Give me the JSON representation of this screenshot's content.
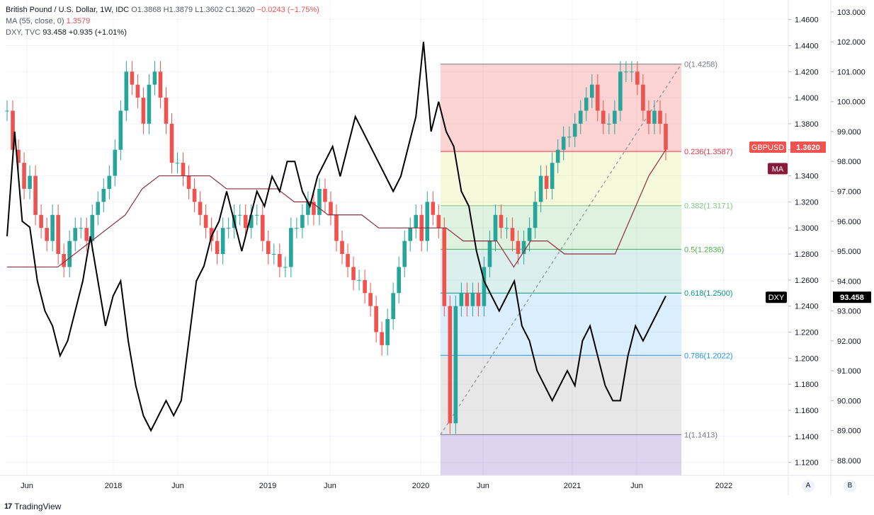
{
  "legend": {
    "symbol": "British Pound / U.S. Dollar, 1W, IDC",
    "open": "O1.3868",
    "high": "H1.3879",
    "low": "L1.3602",
    "close": "C1.3620",
    "change": "−0.0243 (−1.75%)",
    "ma_label": "MA (55, close, 0)",
    "ma_value": "1.3579",
    "dxy_label": "DXY, TVC",
    "dxy_value": "93.458",
    "dxy_change": "+0.935 (+1.01%)"
  },
  "footer": {
    "brand": "TradingView",
    "logo": "17"
  },
  "scale_buttons": {
    "a": "A",
    "b": "B"
  },
  "colors": {
    "up": "#26a69a",
    "down": "#ef5350",
    "ma": "#8b2e3e",
    "dxy": "#000000",
    "gbpusd_badge": "#ef5350",
    "ma_badge": "#8b1a3a",
    "dxy_badge": "#000000"
  },
  "chart_data": {
    "type": "line",
    "title": "British Pound / U.S. Dollar, 1W, IDC",
    "x_ticks": [
      "Jun",
      "2018",
      "Jun",
      "2019",
      "Jun",
      "2020",
      "Jun",
      "2021",
      "Jun",
      "2022"
    ],
    "y_left_ticks": [
      "1.4600",
      "1.4400",
      "1.4200",
      "1.4000",
      "1.3800",
      "1.3600",
      "1.3400",
      "1.3200",
      "1.3000",
      "1.2800",
      "1.2600",
      "1.2400",
      "1.2200",
      "1.2000",
      "1.1800",
      "1.1600",
      "1.1400",
      "1.1200"
    ],
    "y_right_ticks": [
      "103.000",
      "102.000",
      "101.000",
      "100.000",
      "99.000",
      "98.000",
      "97.000",
      "96.000",
      "95.000",
      "94.000",
      "93.000",
      "92.000",
      "91.000",
      "90.000",
      "89.000",
      "88.000"
    ],
    "ylim_left": [
      1.11,
      1.475
    ],
    "ylim_right": [
      87.5,
      103.4
    ],
    "series": [
      {
        "name": "GBPUSD",
        "kind": "line",
        "values": [
          1.39,
          1.36,
          1.35,
          1.33,
          1.34,
          1.31,
          1.3,
          1.29,
          1.31,
          1.28,
          1.27,
          1.29,
          1.3,
          1.3,
          1.29,
          1.31,
          1.32,
          1.33,
          1.34,
          1.36,
          1.39,
          1.42,
          1.41,
          1.4,
          1.38,
          1.41,
          1.42,
          1.4,
          1.38,
          1.35,
          1.35,
          1.34,
          1.33,
          1.32,
          1.31,
          1.3,
          1.29,
          1.28,
          1.3,
          1.3,
          1.31,
          1.31,
          1.3,
          1.31,
          1.31,
          1.29,
          1.28,
          1.28,
          1.27,
          1.27,
          1.3,
          1.3,
          1.31,
          1.32,
          1.31,
          1.33,
          1.32,
          1.31,
          1.29,
          1.28,
          1.27,
          1.26,
          1.26,
          1.25,
          1.24,
          1.22,
          1.21,
          1.23,
          1.25,
          1.27,
          1.29,
          1.3,
          1.31,
          1.29,
          1.32,
          1.31,
          1.3,
          1.24,
          1.15,
          1.24,
          1.25,
          1.24,
          1.25,
          1.24,
          1.27,
          1.29,
          1.31,
          1.3,
          1.3,
          1.29,
          1.28,
          1.29,
          1.3,
          1.32,
          1.34,
          1.33,
          1.35,
          1.36,
          1.37,
          1.37,
          1.38,
          1.39,
          1.4,
          1.41,
          1.39,
          1.38,
          1.38,
          1.39,
          1.42,
          1.42,
          1.42,
          1.41,
          1.39,
          1.38,
          1.39,
          1.38,
          1.36
        ]
      },
      {
        "name": "MA",
        "values": [
          1.27,
          1.27,
          1.27,
          1.27,
          1.28,
          1.29,
          1.3,
          1.31,
          1.33,
          1.34,
          1.34,
          1.34,
          1.34,
          1.33,
          1.33,
          1.33,
          1.33,
          1.32,
          1.32,
          1.31,
          1.31,
          1.31,
          1.3,
          1.3,
          1.3,
          1.3,
          1.3,
          1.29,
          1.29,
          1.29,
          1.27,
          1.29,
          1.29,
          1.28,
          1.28,
          1.28,
          1.28,
          1.31,
          1.34,
          1.36
        ]
      },
      {
        "name": "DXY",
        "values": [
          95.5,
          99.0,
          96.0,
          95.8,
          94.0,
          93.0,
          92.5,
          91.5,
          92.0,
          93.0,
          94.0,
          95.5,
          94.0,
          92.5,
          93.5,
          94.0,
          92.0,
          90.5,
          89.5,
          89.0,
          89.5,
          90.0,
          89.5,
          90.0,
          92.0,
          94.0,
          94.5,
          95.5,
          96.0,
          97.0,
          96.0,
          95.0,
          96.0,
          97.0,
          96.5,
          97.5,
          97.0,
          98.0,
          98.0,
          97.0,
          96.5,
          97.5,
          98.0,
          98.5,
          97.5,
          98.5,
          99.5,
          99.0,
          98.5,
          98.0,
          97.5,
          97.0,
          97.5,
          98.5,
          99.5,
          102.0,
          99.0,
          100.0,
          99.0,
          98.5,
          97.0,
          96.5,
          95.0,
          94.0,
          93.5,
          93.0,
          93.5,
          94.0,
          92.5,
          92.0,
          91.0,
          90.5,
          90.0,
          90.5,
          91.0,
          90.5,
          92.0,
          92.5,
          91.5,
          90.5,
          90.0,
          90.0,
          91.5,
          92.5,
          92.0,
          92.5,
          93.0,
          93.5
        ]
      }
    ],
    "fib_levels": [
      {
        "label": "0(1.4258)",
        "value": 1.4258,
        "color": "#787b86"
      },
      {
        "label": "0.236(1.3587)",
        "value": 1.3587,
        "color": "#f23645"
      },
      {
        "label": "0.382(1.3171)",
        "value": 1.3171,
        "color": "#81c784"
      },
      {
        "label": "0.5(1.2836)",
        "value": 1.2836,
        "color": "#4caf50"
      },
      {
        "label": "0.618(1.2500)",
        "value": 1.25,
        "color": "#089981"
      },
      {
        "label": "0.786(1.2022)",
        "value": 1.2022,
        "color": "#2196f3"
      },
      {
        "label": "1(1.1413)",
        "value": 1.1413,
        "color": "#787b86"
      }
    ],
    "price_badges": [
      {
        "label": "GBPUSD",
        "value": "1.3620"
      },
      {
        "label": "MA",
        "value": ""
      },
      {
        "label": "DXY",
        "value": "93.458"
      }
    ]
  }
}
